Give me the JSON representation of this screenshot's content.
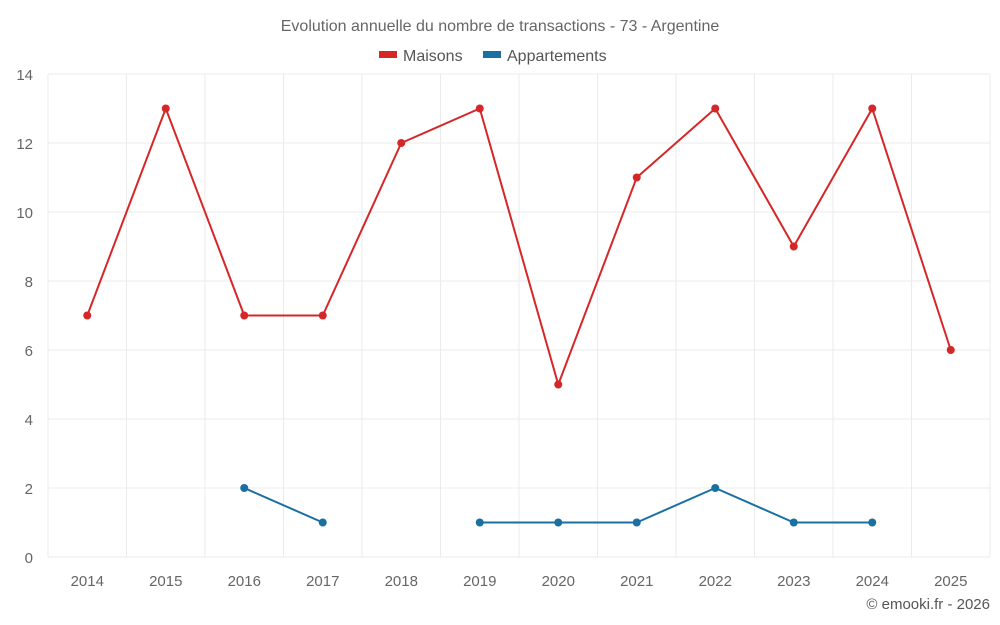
{
  "chart_data": {
    "type": "line",
    "title": "Evolution annuelle du nombre de transactions - 73 - Argentine",
    "categories": [
      "2014",
      "2015",
      "2016",
      "2017",
      "2018",
      "2019",
      "2020",
      "2021",
      "2022",
      "2023",
      "2024",
      "2025"
    ],
    "series": [
      {
        "name": "Maisons",
        "color": "#d62728",
        "values": [
          7,
          13,
          7,
          7,
          12,
          13,
          5,
          11,
          13,
          9,
          13,
          6
        ]
      },
      {
        "name": "Appartements",
        "color": "#1a6fa3",
        "values": [
          null,
          null,
          2,
          1,
          null,
          1,
          1,
          1,
          2,
          1,
          1,
          null
        ]
      }
    ],
    "ylim": [
      0,
      14
    ],
    "yticks": [
      0,
      2,
      4,
      6,
      8,
      10,
      12,
      14
    ],
    "grid": true,
    "legend_position": "top-center"
  },
  "credit": "© emooki.fr - 2026"
}
